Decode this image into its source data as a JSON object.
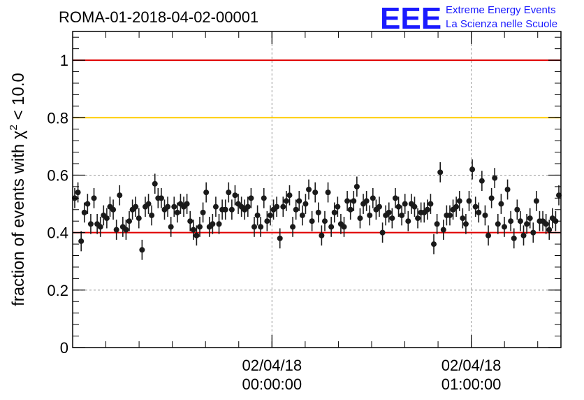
{
  "chart_data": {
    "type": "scatter",
    "title": "ROMA-01-2018-04-02-00001",
    "ylabel_prefix": "fraction of events with χ",
    "ylabel_sup": "2",
    "ylabel_suffix": " < 10.0",
    "xlabel": "",
    "ylim": [
      0,
      1.1
    ],
    "y_ticks": [
      {
        "value": 0,
        "label": "0"
      },
      {
        "value": 0.2,
        "label": "0.2"
      },
      {
        "value": 0.4,
        "label": "0.4"
      },
      {
        "value": 0.6,
        "label": "0.6"
      },
      {
        "value": 0.8,
        "label": "0.8"
      },
      {
        "value": 1.0,
        "label": "1"
      }
    ],
    "x_range_minutes": [
      -40,
      58
    ],
    "x_ticks": [
      {
        "minutes": 0,
        "date": "02/04/18",
        "time": "00:00:00"
      },
      {
        "minutes": 40,
        "date": "02/04/18",
        "time": "01:00:00"
      }
    ],
    "x_minor_interval_minutes": 6.667,
    "grid": true,
    "reference_lines": [
      {
        "value": 1.0,
        "color": "#e00000"
      },
      {
        "value": 0.8,
        "color": "#ffcc00"
      },
      {
        "value": 0.4,
        "color": "#e00000"
      }
    ],
    "series": [
      {
        "marker_color": "#1a1a1a",
        "error": 0.035,
        "values": [
          0.52,
          0.54,
          0.37,
          0.47,
          0.5,
          0.43,
          0.52,
          0.43,
          0.42,
          0.46,
          0.45,
          0.49,
          0.48,
          0.41,
          0.53,
          0.42,
          0.41,
          0.44,
          0.48,
          0.49,
          0.45,
          0.34,
          0.49,
          0.5,
          0.46,
          0.57,
          0.52,
          0.52,
          0.48,
          0.49,
          0.42,
          0.49,
          0.47,
          0.5,
          0.49,
          0.5,
          0.44,
          0.41,
          0.39,
          0.42,
          0.47,
          0.54,
          0.42,
          0.43,
          0.49,
          0.43,
          0.48,
          0.48,
          0.54,
          0.48,
          0.53,
          0.5,
          0.49,
          0.48,
          0.49,
          0.52,
          0.42,
          0.46,
          0.42,
          0.52,
          0.44,
          0.46,
          0.48,
          0.49,
          0.38,
          0.49,
          0.51,
          0.53,
          0.42,
          0.48,
          0.51,
          0.46,
          0.5,
          0.55,
          0.44,
          0.54,
          0.47,
          0.39,
          0.44,
          0.54,
          0.42,
          0.47,
          0.49,
          0.43,
          0.42,
          0.51,
          0.48,
          0.51,
          0.56,
          0.45,
          0.5,
          0.51,
          0.46,
          0.52,
          0.48,
          0.49,
          0.4,
          0.46,
          0.47,
          0.45,
          0.52,
          0.49,
          0.46,
          0.5,
          0.44,
          0.5,
          0.49,
          0.45,
          0.47,
          0.47,
          0.48,
          0.5,
          0.36,
          0.43,
          0.61,
          0.41,
          0.46,
          0.46,
          0.48,
          0.49,
          0.51,
          0.45,
          0.43,
          0.51,
          0.62,
          0.49,
          0.47,
          0.58,
          0.46,
          0.39,
          0.52,
          0.59,
          0.43,
          0.5,
          0.42,
          0.55,
          0.44,
          0.38,
          0.48,
          0.44,
          0.39,
          0.43,
          0.45,
          0.4,
          0.51,
          0.44,
          0.44,
          0.43,
          0.41,
          0.45,
          0.44,
          0.53
        ]
      }
    ]
  },
  "logo": {
    "mark": "EEE",
    "line1": "Extreme Energy Events",
    "line2": "La Scienza nelle Scuole"
  }
}
